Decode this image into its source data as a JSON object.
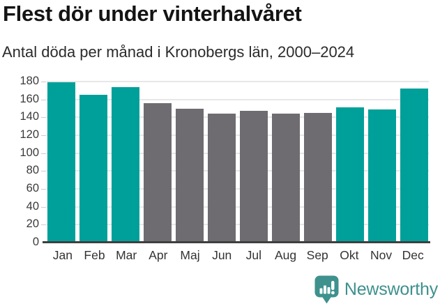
{
  "header": {
    "title": "Flest dör under vinterhalvåret",
    "subtitle": "Antal döda per månad i Kronobergs län, 2000–2024"
  },
  "chart_data": {
    "type": "bar",
    "title": "Flest dör under vinterhalvåret",
    "subtitle": "Antal döda per månad i Kronobergs län, 2000–2024",
    "categories": [
      "Jan",
      "Feb",
      "Mar",
      "Apr",
      "Maj",
      "Jun",
      "Jul",
      "Aug",
      "Sep",
      "Okt",
      "Nov",
      "Dec"
    ],
    "values": [
      179,
      165,
      174,
      156,
      150,
      144,
      147,
      144,
      145,
      151,
      149,
      172
    ],
    "ylabel": "",
    "xlabel": "",
    "ylim": [
      0,
      180
    ],
    "ytick_step": 20,
    "yticks": [
      0,
      20,
      40,
      60,
      80,
      100,
      120,
      140,
      160,
      180
    ],
    "grid": true,
    "legend": false,
    "colors": {
      "winter": "#00a09a",
      "summer": "#6e6c70"
    },
    "grid_color": "#e7e7e7",
    "axis_color": "#3f3f3f",
    "bar_color_keys": [
      "winter",
      "winter",
      "winter",
      "summer",
      "summer",
      "summer",
      "summer",
      "summer",
      "summer",
      "winter",
      "winter",
      "winter"
    ]
  },
  "footer": {
    "brand": "Newsworthy",
    "logo_icon": "newsworthy-bubble-barchart-icon",
    "logo_color": "#3e918d"
  }
}
